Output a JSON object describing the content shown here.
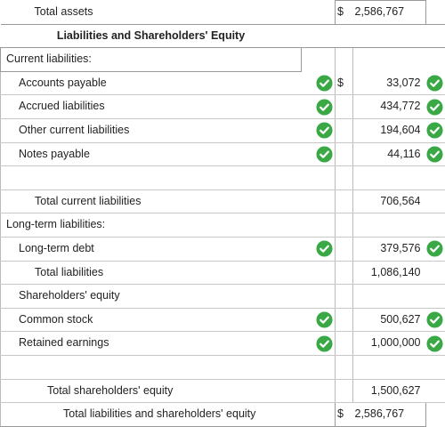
{
  "rows": {
    "total_assets": {
      "label": "Total assets",
      "dollar": "$",
      "value": "2,586,767"
    },
    "section_title": "Liabilities and Shareholders' Equity",
    "current_liabilities_header": "Current liabilities:",
    "accounts_payable": {
      "label": "Accounts payable",
      "dollar": "$",
      "value": "33,072"
    },
    "accrued_liabilities": {
      "label": "Accrued liabilities",
      "value": "434,772"
    },
    "other_current_liabilities": {
      "label": "Other current liabilities",
      "value": "194,604"
    },
    "notes_payable": {
      "label": "Notes payable",
      "value": "44,116"
    },
    "total_current_liabilities": {
      "label": "Total current liabilities",
      "value": "706,564"
    },
    "long_term_header": "Long-term liabilities:",
    "long_term_debt": {
      "label": "Long-term debt",
      "value": "379,576"
    },
    "total_liabilities": {
      "label": "Total liabilities",
      "value": "1,086,140"
    },
    "shareholders_equity_header": "Shareholders' equity",
    "common_stock": {
      "label": "Common stock",
      "value": "500,627"
    },
    "retained_earnings": {
      "label": "Retained earnings",
      "value": "1,000,000"
    },
    "total_shareholders_equity": {
      "label": "Total shareholders' equity",
      "value": "1,500,627"
    },
    "total_liabilities_and_equity": {
      "label": "Total liabilities and shareholders' equity",
      "dollar": "$",
      "value": "2,586,767"
    }
  },
  "colors": {
    "check_green": "#3aa845",
    "border": "#999999"
  },
  "icons": {
    "check": "check-circle-icon"
  }
}
